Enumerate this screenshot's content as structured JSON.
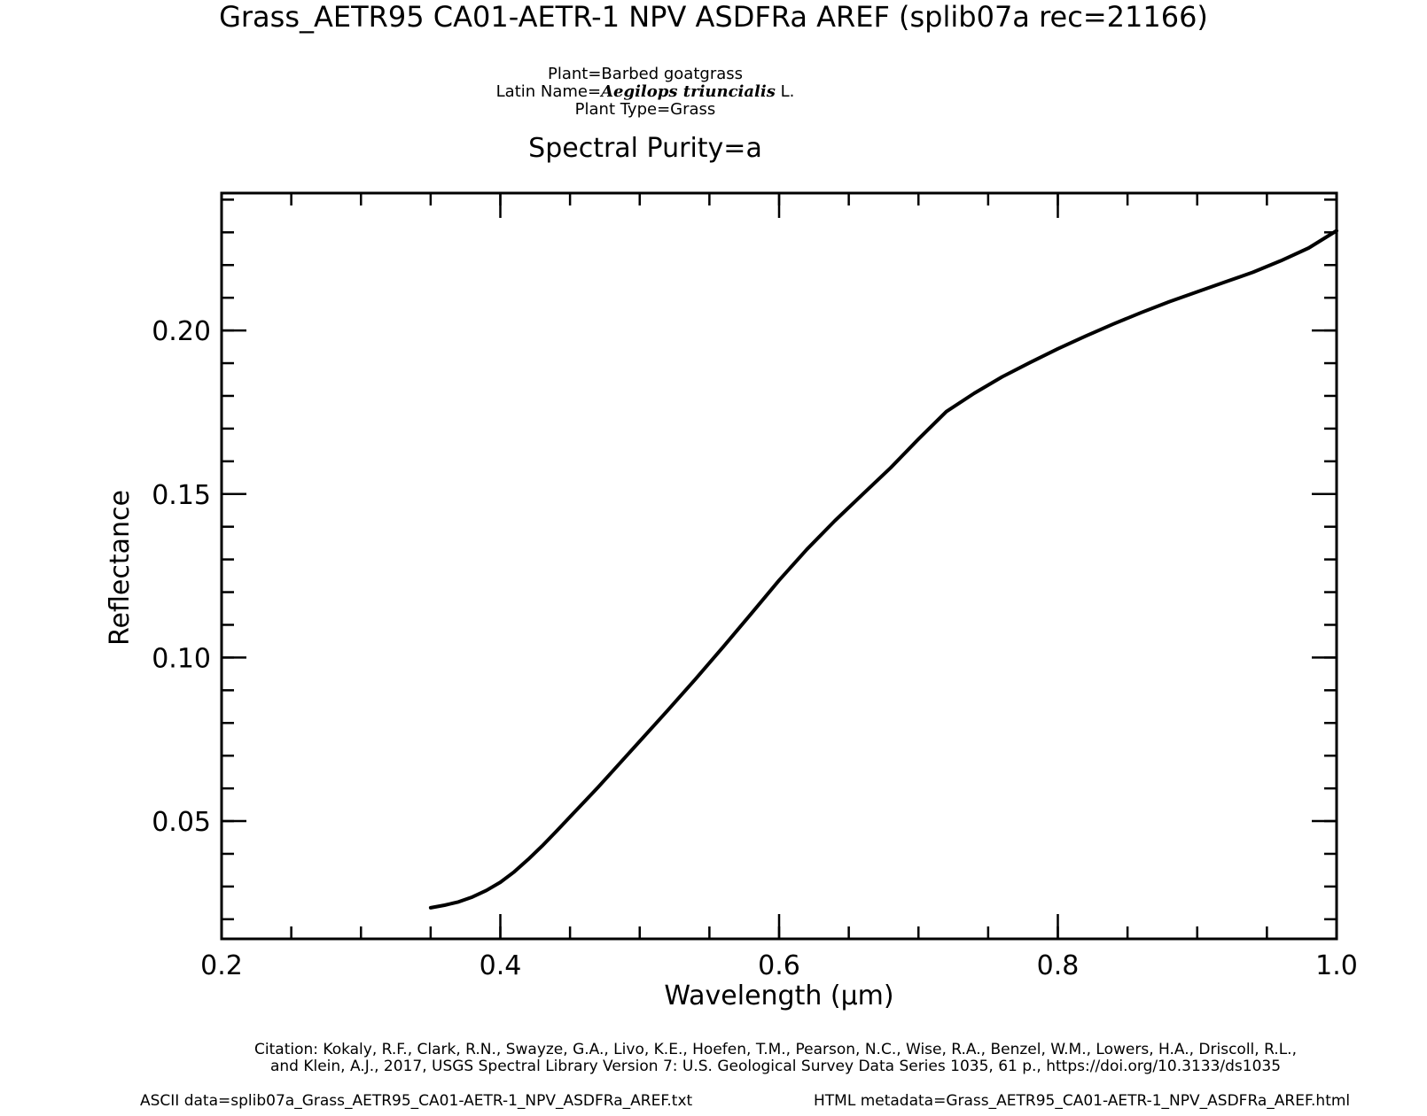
{
  "header": {
    "title": "Grass_AETR95 CA01-AETR-1 NPV ASDFRa AREF   (splib07a rec=21166)",
    "plant_line": "Plant=Barbed goatgrass",
    "latin_prefix": "Latin Name=",
    "latin_name": "Aegilops triuncialis",
    "latin_suffix": " L.",
    "plant_type": "Plant Type=Grass",
    "purity": "Spectral Purity=a"
  },
  "footer": {
    "citation_line1": "Citation: Kokaly, R.F., Clark, R.N., Swayze, G.A., Livo, K.E., Hoefen, T.M., Pearson, N.C., Wise, R.A., Benzel, W.M., Lowers, H.A., Driscoll, R.L.,",
    "citation_line2": "and Klein, A.J., 2017, USGS Spectral Library Version 7: U.S. Geological Survey Data Series 1035, 61 p., https://doi.org/10.3133/ds1035",
    "ascii": "ASCII data=splib07a_Grass_AETR95_CA01-AETR-1_NPV_ASDFRa_AREF.txt",
    "html_meta": "HTML metadata=Grass_AETR95_CA01-AETR-1_NPV_ASDFRa_AREF.html"
  },
  "chart_data": {
    "type": "line",
    "xlabel": "Wavelength (μm)",
    "ylabel": "Reflectance",
    "xlim": [
      0.2,
      1.0
    ],
    "ylim": [
      0.014,
      0.242
    ],
    "x_ticks": [
      {
        "value": 0.2,
        "label": "0.2"
      },
      {
        "value": 0.4,
        "label": "0.4"
      },
      {
        "value": 0.6,
        "label": "0.6"
      },
      {
        "value": 0.8,
        "label": "0.8"
      },
      {
        "value": 1.0,
        "label": "1.0"
      }
    ],
    "y_ticks": [
      {
        "value": 0.05,
        "label": "0.05"
      },
      {
        "value": 0.1,
        "label": "0.10"
      },
      {
        "value": 0.15,
        "label": "0.15"
      },
      {
        "value": 0.2,
        "label": "0.20"
      }
    ],
    "x_minor_step": 0.05,
    "y_minor_step": 0.01,
    "grid": false,
    "line_color": "#000000",
    "series": [
      {
        "x": [
          0.35,
          0.36,
          0.37,
          0.38,
          0.39,
          0.4,
          0.41,
          0.42,
          0.43,
          0.44,
          0.45,
          0.46,
          0.47,
          0.48,
          0.49,
          0.5,
          0.52,
          0.54,
          0.56,
          0.58,
          0.6,
          0.62,
          0.64,
          0.66,
          0.68,
          0.7,
          0.72,
          0.74,
          0.76,
          0.78,
          0.8,
          0.82,
          0.84,
          0.86,
          0.88,
          0.9,
          0.92,
          0.94,
          0.96,
          0.98,
          1.0
        ],
        "y": [
          0.0235,
          0.0243,
          0.0253,
          0.0268,
          0.0288,
          0.0313,
          0.0345,
          0.0383,
          0.0424,
          0.0468,
          0.0513,
          0.0558,
          0.0603,
          0.065,
          0.0697,
          0.0744,
          0.0838,
          0.0934,
          0.1033,
          0.1134,
          0.1236,
          0.1331,
          0.1418,
          0.1499,
          0.158,
          0.1668,
          0.1752,
          0.1808,
          0.1858,
          0.1902,
          0.1944,
          0.1983,
          0.202,
          0.2055,
          0.2088,
          0.2118,
          0.2148,
          0.2178,
          0.2213,
          0.2252,
          0.2305
        ]
      }
    ]
  }
}
